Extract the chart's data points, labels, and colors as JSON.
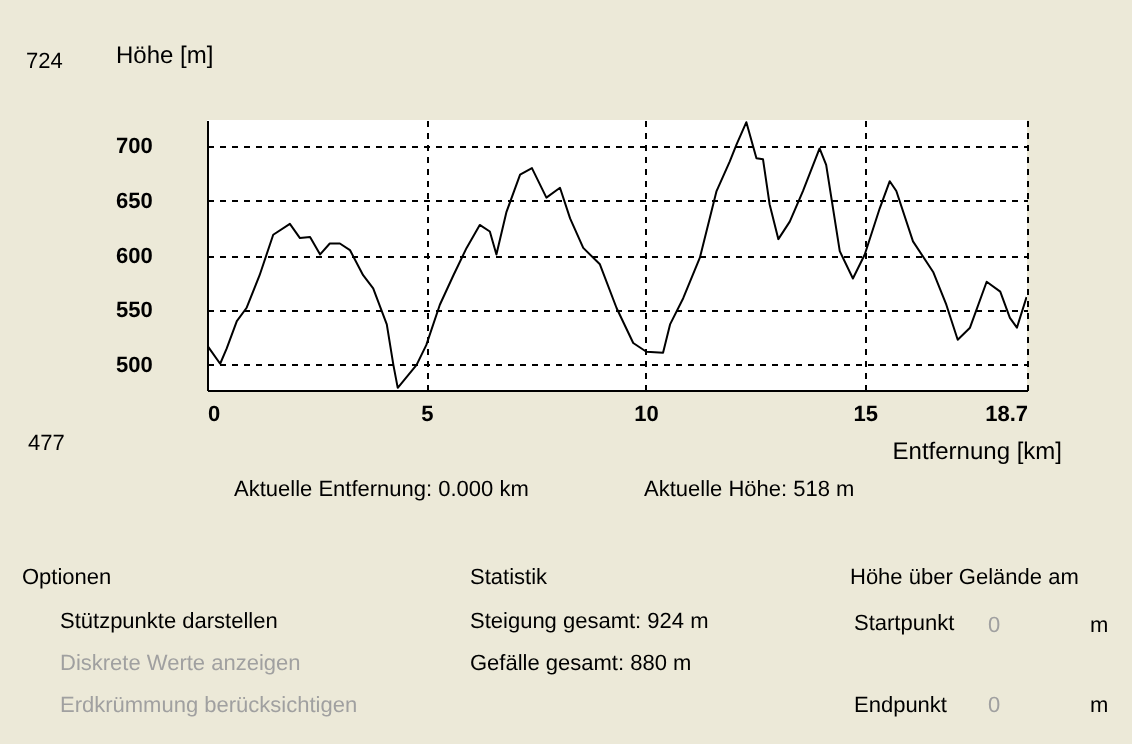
{
  "chart_data": {
    "type": "line",
    "xlabel": "Entfernung [km]",
    "ylabel": "Höhe [m]",
    "series": [
      {
        "color": "#000000",
        "x": [
          0,
          0.3,
          0.45,
          0.68,
          0.9,
          1.2,
          1.51,
          1.89,
          2.12,
          2.35,
          2.58,
          2.8,
          3.03,
          3.26,
          3.56,
          3.79,
          4.1,
          4.25,
          4.35,
          4.78,
          5.0,
          5.31,
          5.62,
          5.92,
          6.22,
          6.45,
          6.6,
          6.83,
          7.14,
          7.41,
          7.74,
          8.05,
          8.28,
          8.58,
          8.96,
          9.34,
          9.72,
          10.02,
          10.4,
          10.56,
          10.86,
          11.24,
          11.62,
          11.92,
          12.07,
          12.3,
          12.53,
          12.68,
          12.83,
          13.03,
          13.29,
          13.59,
          13.97,
          14.12,
          14.43,
          14.73,
          15.0,
          15.34,
          15.57,
          15.72,
          16.1,
          16.56,
          16.86,
          17.12,
          17.4,
          17.78,
          18.09,
          18.31,
          18.47,
          18.69
        ],
        "values": [
          518,
          501,
          515,
          540,
          552,
          582,
          619,
          629,
          616,
          617,
          601,
          611,
          611,
          605,
          582,
          570,
          537,
          500,
          479,
          500,
          518,
          555,
          582,
          607,
          628,
          622,
          601,
          640,
          674,
          680,
          653,
          662,
          634,
          607,
          592,
          552,
          520,
          512,
          511,
          537,
          561,
          598,
          659,
          686,
          701,
          722,
          689,
          688,
          647,
          615,
          631,
          659,
          698,
          683,
          604,
          579,
          601,
          643,
          668,
          659,
          613,
          585,
          555,
          523,
          534,
          576,
          567,
          543,
          534,
          562
        ]
      }
    ],
    "xlim": [
      0,
      18.7
    ],
    "xticks": [
      0,
      5,
      10,
      15,
      18.7
    ],
    "ylim": [
      477,
      724
    ],
    "yticks": [
      500,
      550,
      600,
      650,
      700
    ],
    "grid": true,
    "line_style": "solid",
    "marker": "none",
    "annotations": [
      "724",
      "477",
      "Aktuelle Entfernung: 0.000 km",
      "Aktuelle Höhe: 518 m",
      "Optionen",
      "Stützpunkte darstellen",
      "Diskrete Werte anzeigen",
      "Erdkrümmung berücksichtigen",
      "Statistik",
      "Steigung gesamt: 924 m",
      "Gefälle gesamt: 880 m",
      "Höhe über Gelände am",
      "Startpunkt",
      "Endpunkt",
      "0",
      "m",
      "0",
      "m"
    ]
  }
}
